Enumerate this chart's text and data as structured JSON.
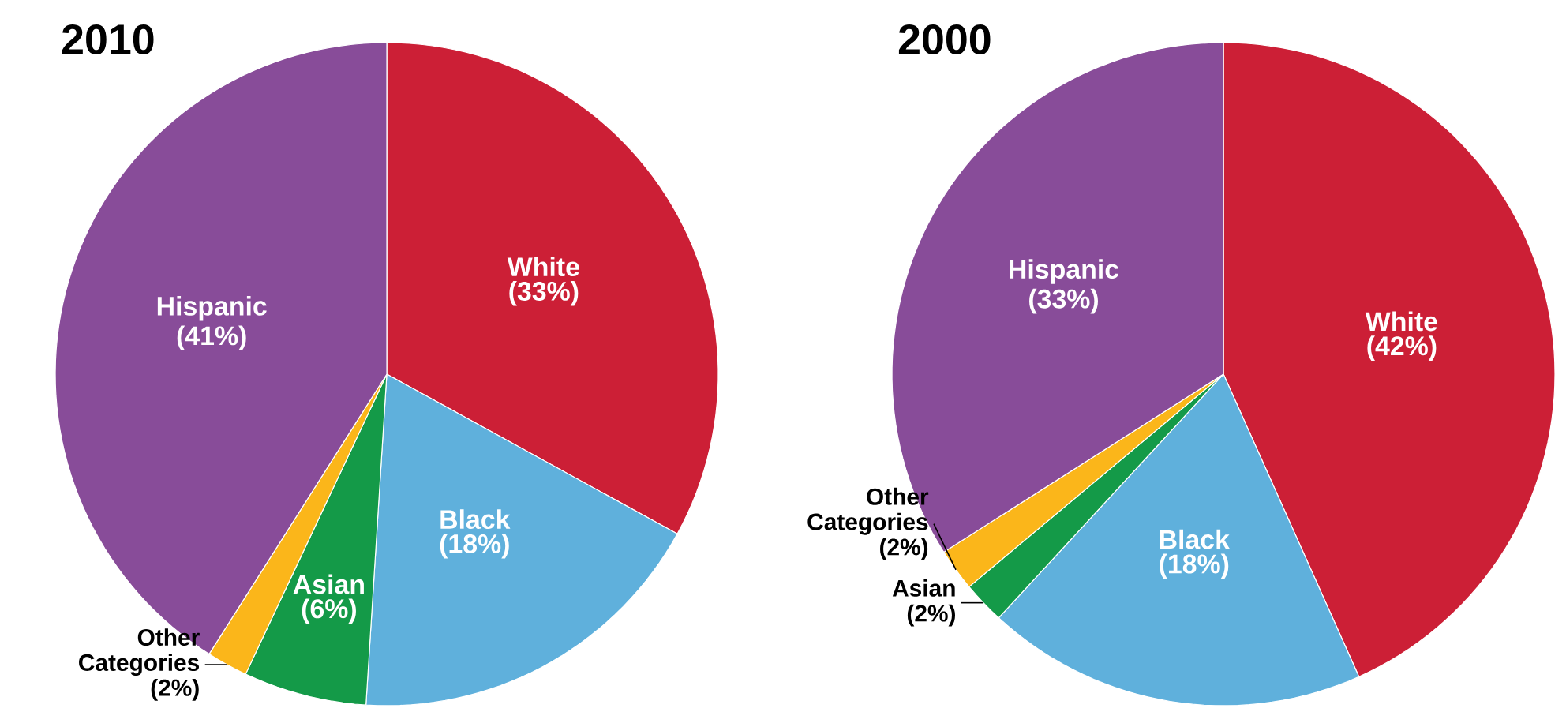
{
  "chart_data": [
    {
      "type": "pie",
      "title": "2010",
      "categories": [
        "White",
        "Black",
        "Asian",
        "Other Categories",
        "Hispanic"
      ],
      "values": [
        33,
        18,
        6,
        2,
        41
      ],
      "value_labels": [
        "(33%)",
        "(18%)",
        "(6%)",
        "(2%)",
        "(41%)"
      ],
      "colors": [
        "#cc1f36",
        "#5fb0dc",
        "#149a48",
        "#fbb61a",
        "#884c99"
      ]
    },
    {
      "type": "pie",
      "title": "2000",
      "categories": [
        "White",
        "Black",
        "Asian",
        "Other Categories",
        "Hispanic"
      ],
      "values": [
        42,
        18,
        2,
        2,
        33
      ],
      "value_labels": [
        "(42%)",
        "(18%)",
        "(2%)",
        "(2%)",
        "(33%)"
      ],
      "colors": [
        "#cc1f36",
        "#5fb0dc",
        "#149a48",
        "#fbb61a",
        "#884c99"
      ]
    }
  ]
}
